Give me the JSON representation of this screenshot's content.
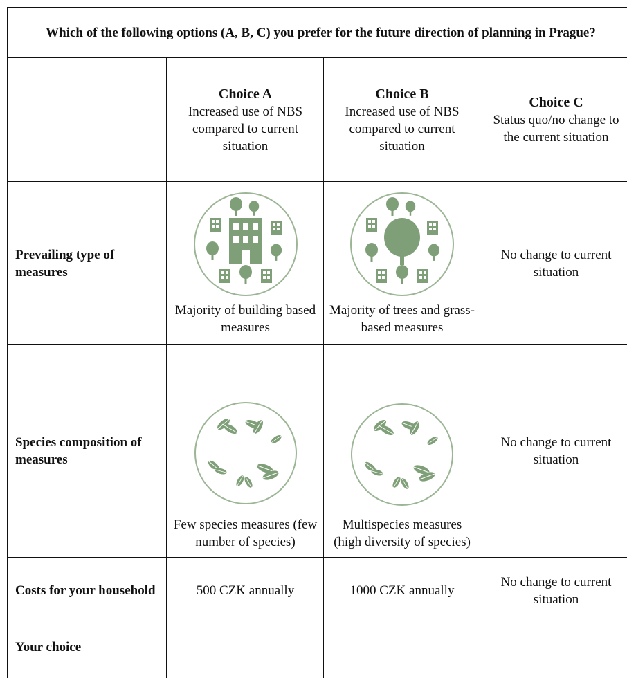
{
  "header": {
    "title": "Which of the following options (A, B, C) you prefer for the future direction of planning in Prague?"
  },
  "table": {
    "columns": [
      {
        "title": "Choice A",
        "subtitle": "Increased use of NBS compared to current situation"
      },
      {
        "title": "Choice B",
        "subtitle": "Increased use of NBS compared to current situation"
      },
      {
        "title": "Choice C",
        "subtitle": "Status quo/no change to the current situation"
      }
    ],
    "rows": [
      {
        "label": "Prevailing type of measures",
        "cells": [
          "Majority of building based measures",
          "Majority of trees and grass-based measures",
          "No change to current situation"
        ]
      },
      {
        "label": "Species composition of measures",
        "cells": [
          "Few species measures (few number of species)",
          "Multispecies measures (high diversity of species)",
          "No change to current situation"
        ]
      },
      {
        "label": "Costs for your household",
        "cells": [
          "500 CZK annually",
          "1000 CZK annually",
          "No change to current situation"
        ]
      },
      {
        "label": "Your choice"
      }
    ]
  }
}
